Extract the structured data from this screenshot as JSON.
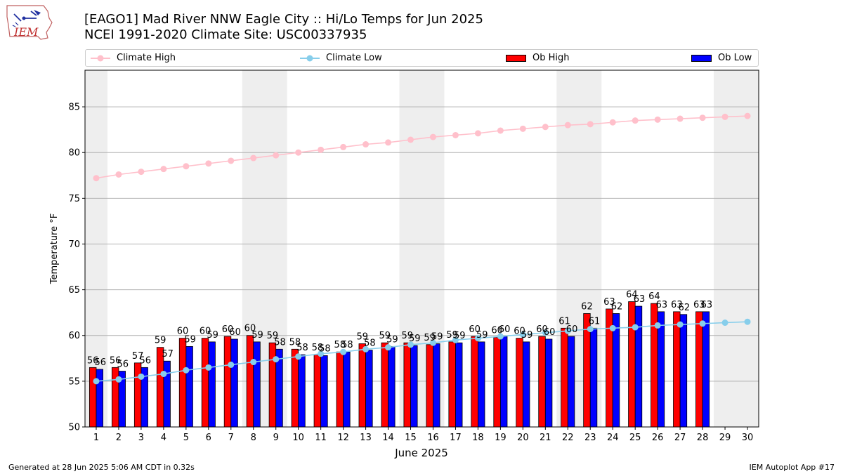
{
  "title_line1": "[EAGO1] Mad River  NNW Eagle City :: Hi/Lo Temps for Jun 2025",
  "title_line2": "NCEI 1991-2020 Climate Site: USC00337935",
  "logo_text": "IEM",
  "footer_left": "Generated at 28 Jun 2025 5:06 AM CDT in 0.32s",
  "footer_right": "IEM Autoplot App #17",
  "colors": {
    "climate_high": "#ffc0cb",
    "climate_low": "#87ceeb",
    "ob_high": "#ff0000",
    "ob_low": "#0000ff",
    "weekend_band": "#eeeeee",
    "grid": "#b0b0b0"
  },
  "chart_data": {
    "type": "bar",
    "title": "[EAGO1] Mad River  NNW Eagle City :: Hi/Lo Temps for Jun 2025",
    "subtitle": "NCEI 1991-2020 Climate Site: USC00337935",
    "xlabel": "June 2025",
    "ylabel": "Temperature °F",
    "ylim": [
      50,
      89
    ],
    "xlim": [
      0.5,
      30.5
    ],
    "yticks": [
      50,
      55,
      60,
      65,
      70,
      75,
      80,
      85
    ],
    "x": [
      1,
      2,
      3,
      4,
      5,
      6,
      7,
      8,
      9,
      10,
      11,
      12,
      13,
      14,
      15,
      16,
      17,
      18,
      19,
      20,
      21,
      22,
      23,
      24,
      25,
      26,
      27,
      28,
      29,
      30
    ],
    "grid": "horizontal",
    "legend_position": "top",
    "shaded_days": [
      [
        0.5,
        1.5
      ],
      [
        7.5,
        9.5
      ],
      [
        14.5,
        16.5
      ],
      [
        21.5,
        23.5
      ],
      [
        28.5,
        30.5
      ]
    ],
    "series": [
      {
        "name": "Climate High",
        "kind": "line",
        "values": [
          77.2,
          77.6,
          77.9,
          78.2,
          78.5,
          78.8,
          79.1,
          79.4,
          79.7,
          80.0,
          80.3,
          80.6,
          80.9,
          81.1,
          81.4,
          81.7,
          81.9,
          82.1,
          82.4,
          82.6,
          82.8,
          83.0,
          83.1,
          83.3,
          83.5,
          83.6,
          83.7,
          83.8,
          83.9,
          84.0
        ]
      },
      {
        "name": "Climate Low",
        "kind": "line",
        "values": [
          55.0,
          55.2,
          55.5,
          55.8,
          56.2,
          56.5,
          56.8,
          57.1,
          57.4,
          57.7,
          58.0,
          58.2,
          58.5,
          58.7,
          59.0,
          59.2,
          59.5,
          59.7,
          59.9,
          60.1,
          60.3,
          60.5,
          60.7,
          60.8,
          60.9,
          61.1,
          61.2,
          61.3,
          61.4,
          61.5
        ]
      },
      {
        "name": "Ob High",
        "kind": "bar",
        "values": [
          56.5,
          56.5,
          57.0,
          58.7,
          59.7,
          59.7,
          59.9,
          60.0,
          59.2,
          58.5,
          57.9,
          58.2,
          59.1,
          59.2,
          59.2,
          59.0,
          59.3,
          59.9,
          59.8,
          59.7,
          59.9,
          60.8,
          62.4,
          62.9,
          63.7,
          63.5,
          62.6,
          62.6,
          null,
          null
        ],
        "labels": [
          "56",
          "56",
          "57",
          "59",
          "60",
          "60",
          "60",
          "60",
          "59",
          "58",
          "58",
          "58",
          "59",
          "59",
          "59",
          "59",
          "59",
          "60",
          "60",
          "60",
          "60",
          "61",
          "62",
          "63",
          "64",
          "64",
          "63",
          "63",
          "",
          ""
        ]
      },
      {
        "name": "Ob Low",
        "kind": "bar",
        "values": [
          56.3,
          56.1,
          56.5,
          57.2,
          58.8,
          59.3,
          59.6,
          59.3,
          58.5,
          57.9,
          57.8,
          58.2,
          58.4,
          58.8,
          58.9,
          59.1,
          59.2,
          59.3,
          59.9,
          59.3,
          59.6,
          59.9,
          60.8,
          62.4,
          63.2,
          62.6,
          62.3,
          62.6,
          null,
          null
        ],
        "labels": [
          "56",
          "56",
          "56",
          "57",
          "59",
          "59",
          "60",
          "59",
          "58",
          "58",
          "58",
          "58",
          "58",
          "59",
          "59",
          "59",
          "59",
          "59",
          "60",
          "59",
          "60",
          "60",
          "61",
          "62",
          "63",
          "63",
          "62",
          "63",
          "",
          ""
        ]
      }
    ]
  }
}
